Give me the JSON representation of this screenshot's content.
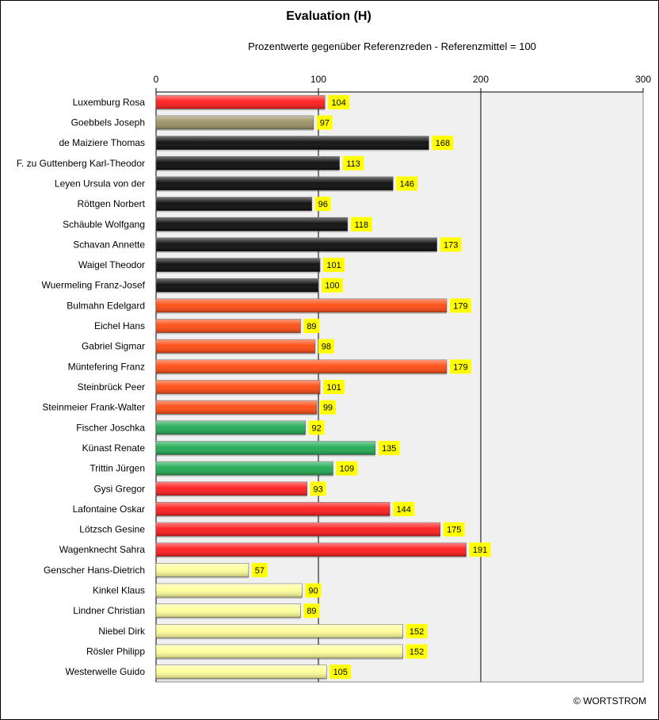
{
  "title": "Evaluation (H)",
  "subtitle": "Prozentwerte  gegenüber Referenzreden - Referenzmittel = 100",
  "credit": "© WORTSTROM",
  "colors": {
    "red": "#ff1a1a",
    "olive": "#9a9264",
    "black": "#0a0a0a",
    "orange": "#ff4a10",
    "green": "#1faa52",
    "yellow": "#ffff9a",
    "label_bg": "#ffff00",
    "plot_bg": "#f0f0f0"
  },
  "chart_data": {
    "type": "bar",
    "orientation": "horizontal",
    "xlim": [
      0,
      300
    ],
    "xticks": [
      "0",
      "100",
      "200",
      "300"
    ],
    "grid": "vertical major gridlines at 100 and 200",
    "categories": [
      "Luxemburg Rosa",
      "Goebbels Joseph",
      "de Maiziere Thomas",
      "F. zu Guttenberg Karl-Theodor",
      "Leyen Ursula von der",
      "Röttgen Norbert",
      "Schäuble Wolfgang",
      "Schavan Annette",
      "Waigel Theodor",
      "Wuermeling Franz-Josef",
      "Bulmahn Edelgard",
      "Eichel Hans",
      "Gabriel Sigmar",
      "Müntefering Franz",
      "Steinbrück Peer",
      "Steinmeier Frank-Walter",
      "Fischer Joschka",
      "Künast Renate",
      "Trittin Jürgen",
      "Gysi Gregor",
      "Lafontaine Oskar",
      "Lötzsch Gesine",
      "Wagenknecht Sahra",
      "Genscher Hans-Dietrich",
      "Kinkel Klaus",
      "Lindner Christian",
      "Niebel Dirk",
      "Rösler Philipp",
      "Westerwelle Guido"
    ],
    "values": [
      104,
      97,
      168,
      113,
      146,
      96,
      118,
      173,
      101,
      100,
      179,
      89,
      98,
      179,
      101,
      99,
      92,
      135,
      109,
      93,
      144,
      175,
      191,
      57,
      90,
      89,
      152,
      152,
      105
    ],
    "value_labels": [
      "104",
      "97",
      "168",
      "113",
      "146",
      "96",
      "118",
      "173",
      "101",
      "100",
      "179",
      "89",
      "98",
      "179",
      "101",
      "99",
      "92",
      "135",
      "109",
      "93",
      "144",
      "175",
      "191",
      "57",
      "90",
      "89",
      "152",
      "152",
      "105"
    ],
    "bar_colors": [
      "red",
      "olive",
      "black",
      "black",
      "black",
      "black",
      "black",
      "black",
      "black",
      "black",
      "orange",
      "orange",
      "orange",
      "orange",
      "orange",
      "orange",
      "green",
      "green",
      "green",
      "red",
      "red",
      "red",
      "red",
      "yellow",
      "yellow",
      "yellow",
      "yellow",
      "yellow",
      "yellow"
    ]
  }
}
